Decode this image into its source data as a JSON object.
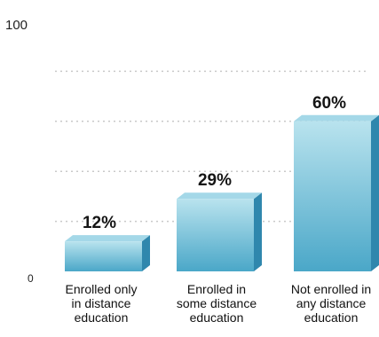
{
  "chart_data": {
    "type": "bar",
    "categories": [
      [
        "Enrolled only",
        "in distance",
        "education"
      ],
      [
        "Enrolled in",
        "some distance",
        "education"
      ],
      [
        "Not enrolled in",
        "any distance",
        "education"
      ]
    ],
    "values": [
      12,
      29,
      60
    ],
    "value_labels": [
      "12%",
      "29%",
      "60%"
    ],
    "ylim": [
      0,
      100
    ],
    "yticks": [
      0,
      100
    ],
    "ytick_labels": [
      "0",
      "100"
    ],
    "grid": "dotted horizontal",
    "colors": {
      "bar_front_top": "#b9e3ee",
      "bar_front_bottom": "#4aa7c8",
      "bar_top": "#a4d8e8",
      "bar_side": "#2f87ad",
      "grid": "#c9c9c9"
    }
  }
}
